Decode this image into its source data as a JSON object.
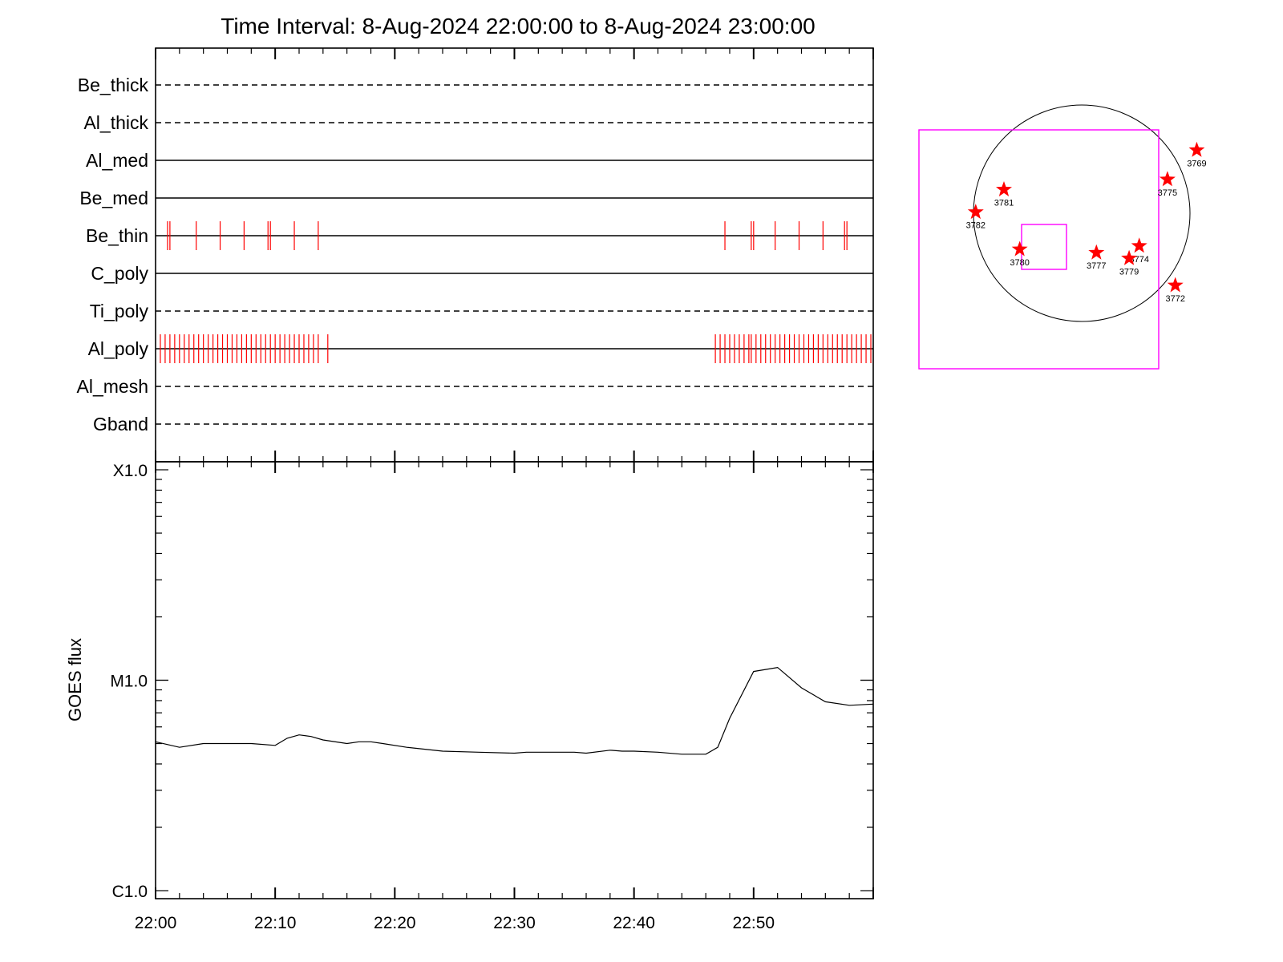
{
  "title": "Time Interval:  8-Aug-2024 22:00:00 to  8-Aug-2024 23:00:00",
  "colors": {
    "ink": "#000000",
    "counts": "#ff0000",
    "fov": "#ff00ff",
    "star": "#ff0000",
    "disk": "#000000"
  },
  "chart_data": [
    {
      "type": "timeline",
      "panel": "filter-coverage",
      "xlim": [
        "22:00",
        "23:00"
      ],
      "filters": [
        {
          "name": "Be_thick",
          "style": "dashed",
          "events": []
        },
        {
          "name": "Al_thick",
          "style": "dashed",
          "events": []
        },
        {
          "name": "Al_med",
          "style": "solid",
          "events": []
        },
        {
          "name": "Be_med",
          "style": "solid",
          "events": []
        },
        {
          "name": "Be_thin",
          "style": "solid",
          "events": [
            "22:01.0",
            "22:01.2",
            "22:03.4",
            "22:05.4",
            "22:07.4",
            "22:09.4",
            "22:09.6",
            "22:11.6",
            "22:13.6",
            "22:47.6",
            "22:49.8",
            "22:50.0",
            "22:51.8",
            "22:53.8",
            "22:55.8",
            "22:57.6",
            "22:57.8"
          ]
        },
        {
          "name": "C_poly",
          "style": "solid",
          "events": []
        },
        {
          "name": "Ti_poly",
          "style": "dashed",
          "events": []
        },
        {
          "name": "Al_poly",
          "style": "solid",
          "events": [
            "22:00.4",
            "22:00.8",
            "22:01.2",
            "22:01.6",
            "22:02.0",
            "22:02.4",
            "22:02.8",
            "22:03.2",
            "22:03.6",
            "22:04.0",
            "22:04.4",
            "22:04.8",
            "22:05.2",
            "22:05.6",
            "22:06.0",
            "22:06.4",
            "22:06.8",
            "22:07.2",
            "22:07.6",
            "22:08.0",
            "22:08.4",
            "22:08.8",
            "22:09.2",
            "22:09.6",
            "22:10.0",
            "22:10.4",
            "22:10.8",
            "22:11.2",
            "22:11.6",
            "22:12.0",
            "22:12.4",
            "22:12.8",
            "22:13.2",
            "22:13.6",
            "22:14.4",
            "22:46.8",
            "22:47.2",
            "22:47.6",
            "22:48.0",
            "22:48.4",
            "22:48.8",
            "22:49.2",
            "22:49.6",
            "22:49.8",
            "22:50.2",
            "22:50.6",
            "22:51.0",
            "22:51.4",
            "22:51.8",
            "22:52.2",
            "22:52.6",
            "22:53.0",
            "22:53.4",
            "22:53.8",
            "22:54.2",
            "22:54.6",
            "22:55.0",
            "22:55.4",
            "22:55.8",
            "22:56.2",
            "22:56.6",
            "22:57.0",
            "22:57.4",
            "22:57.8",
            "22:58.2",
            "22:58.6",
            "22:59.0",
            "22:59.4",
            "22:59.8"
          ]
        },
        {
          "name": "Al_mesh",
          "style": "dashed",
          "events": []
        },
        {
          "name": "Gband",
          "style": "dashed",
          "events": []
        }
      ]
    },
    {
      "type": "line",
      "panel": "goes-flux",
      "ylabel": "GOES flux",
      "yscale": "log",
      "ylim": [
        1e-06,
        0.0001
      ],
      "yticks": [
        {
          "value": 1e-06,
          "label": "C1.0"
        },
        {
          "value": 1e-05,
          "label": "M1.0"
        },
        {
          "value": 0.0001,
          "label": "X1.0"
        }
      ],
      "xlim": [
        "22:00",
        "23:00"
      ],
      "xticks": [
        "22:00",
        "22:10",
        "22:20",
        "22:30",
        "22:40",
        "22:50"
      ],
      "series": [
        {
          "x": [
            "22:00",
            "22:02",
            "22:04",
            "22:06",
            "22:08",
            "22:10",
            "22:11",
            "22:12",
            "22:13",
            "22:14",
            "22:16",
            "22:17",
            "22:18",
            "22:19",
            "22:21",
            "22:24",
            "22:27",
            "22:30",
            "22:31",
            "22:33",
            "22:35",
            "22:36",
            "22:38",
            "22:39",
            "22:40",
            "22:42",
            "22:44",
            "22:46",
            "22:47",
            "22:48",
            "22:50",
            "22:52",
            "22:54",
            "22:56",
            "22:58",
            "23:00"
          ],
          "y": [
            5.1e-06,
            4.8e-06,
            5e-06,
            5e-06,
            5e-06,
            4.9e-06,
            5.3e-06,
            5.5e-06,
            5.4e-06,
            5.2e-06,
            5e-06,
            5.1e-06,
            5.1e-06,
            5e-06,
            4.8e-06,
            4.6e-06,
            4.55e-06,
            4.5e-06,
            4.55e-06,
            4.55e-06,
            4.55e-06,
            4.5e-06,
            4.65e-06,
            4.6e-06,
            4.6e-06,
            4.55e-06,
            4.45e-06,
            4.45e-06,
            4.8e-06,
            6.6e-06,
            1.1e-05,
            1.15e-05,
            9.2e-06,
            7.9e-06,
            7.6e-06,
            7.7e-06
          ]
        }
      ]
    },
    {
      "type": "scatter",
      "panel": "solar-disk-locator",
      "points": [
        {
          "label": "3769",
          "x": 1020,
          "y": 560
        },
        {
          "label": "3775",
          "x": 760,
          "y": 300
        },
        {
          "label": "3781",
          "x": -690,
          "y": 210
        },
        {
          "label": "3782",
          "x": -940,
          "y": 10
        },
        {
          "label": "3780",
          "x": -550,
          "y": -320
        },
        {
          "label": "3777",
          "x": 130,
          "y": -350
        },
        {
          "label": "3774",
          "x": 510,
          "y": -290
        },
        {
          "label": "3779",
          "x": 420,
          "y": -400
        },
        {
          "label": "3772",
          "x": 830,
          "y": -640
        }
      ]
    }
  ]
}
